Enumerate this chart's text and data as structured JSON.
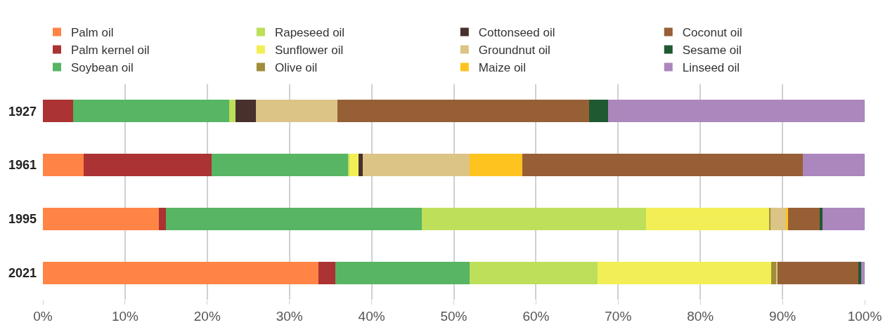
{
  "chart_data": {
    "type": "bar",
    "orientation": "horizontal",
    "stacked": true,
    "categories": [
      "1927",
      "1961",
      "1995",
      "2021"
    ],
    "series": [
      {
        "name": "Palm oil",
        "color": "#ff8445",
        "values": [
          0,
          5.0,
          14.1,
          33.5
        ]
      },
      {
        "name": "Palm kernel oil",
        "color": "#ab3333",
        "values": [
          3.7,
          15.5,
          0.9,
          2.1
        ]
      },
      {
        "name": "Soybean oil",
        "color": "#57b564",
        "values": [
          19.0,
          16.6,
          31.1,
          16.3
        ]
      },
      {
        "name": "Rapeseed oil",
        "color": "#bddf5a",
        "values": [
          0.7,
          0.2,
          27.3,
          15.6
        ]
      },
      {
        "name": "Sunflower oil",
        "color": "#f2ef56",
        "values": [
          0,
          1.1,
          15.0,
          21.1
        ]
      },
      {
        "name": "Olive oil",
        "color": "#a08e3a",
        "values": [
          0,
          0,
          0.1,
          0.6
        ]
      },
      {
        "name": "Cottonseed oil",
        "color": "#47302e",
        "values": [
          2.5,
          0.5,
          0,
          0
        ]
      },
      {
        "name": "Groundnut oil",
        "color": "#dbc486",
        "values": [
          9.9,
          13.0,
          1.9,
          0.2
        ]
      },
      {
        "name": "Maize oil",
        "color": "#ffc31f",
        "values": [
          0,
          6.4,
          0.3,
          0
        ]
      },
      {
        "name": "Coconut oil",
        "color": "#975f35",
        "values": [
          30.7,
          34.2,
          3.8,
          9.8
        ]
      },
      {
        "name": "Sesame oil",
        "color": "#1e5931",
        "values": [
          2.3,
          0,
          0.4,
          0.4
        ]
      },
      {
        "name": "Linseed oil",
        "color": "#ab87bd",
        "values": [
          31.2,
          7.5,
          5.1,
          0.4
        ]
      }
    ],
    "xlim": [
      0,
      100
    ],
    "xticks": [
      {
        "value": 0,
        "label": "0%"
      },
      {
        "value": 10,
        "label": "10%"
      },
      {
        "value": 20,
        "label": "20%"
      },
      {
        "value": 30,
        "label": "30%"
      },
      {
        "value": 40,
        "label": "40%"
      },
      {
        "value": 50,
        "label": "50%"
      },
      {
        "value": 60,
        "label": "60%"
      },
      {
        "value": 70,
        "label": "70%"
      },
      {
        "value": 80,
        "label": "80%"
      },
      {
        "value": 90,
        "label": "90%"
      },
      {
        "value": 100,
        "label": "100%"
      }
    ],
    "grid": "x",
    "legend": "top"
  }
}
